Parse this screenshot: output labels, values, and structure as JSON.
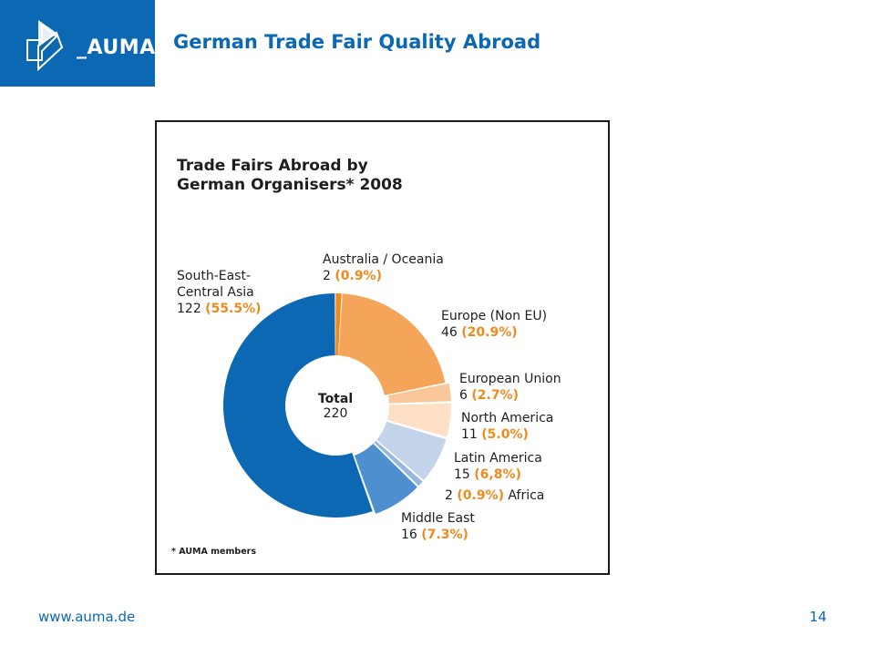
{
  "header": {
    "logo_text": "_AUMA",
    "title": "German Trade Fair Quality Abroad"
  },
  "footer": {
    "url": "www.auma.de",
    "page_number": "14"
  },
  "chart_data": {
    "type": "pie",
    "title": "Trade Fairs Abroad by\nGerman Organisers* 2008",
    "footnote": "* AUMA members",
    "total_label": "Total",
    "total_value": "220",
    "slices": [
      {
        "name": "Australia / Oceania",
        "value": 2,
        "percent": "(0.9%)",
        "color": "#f08a1e"
      },
      {
        "name": "Europe (Non EU)",
        "value": 46,
        "percent": "(20.9%)",
        "color": "#f5a55a"
      },
      {
        "name": "European Union",
        "value": 6,
        "percent": "(2.7%)",
        "color": "#f9c79a"
      },
      {
        "name": "North America",
        "value": 11,
        "percent": "(5.0%)",
        "color": "#fde0c6"
      },
      {
        "name": "Latin America",
        "value": 15,
        "percent": "(6,8%)",
        "color": "#c3d3ea"
      },
      {
        "name": "Africa",
        "value": 2,
        "percent": "(0.9%)",
        "color": "#94b8de"
      },
      {
        "name": "Middle East",
        "value": 16,
        "percent": "(7.3%)",
        "color": "#4d8fcf"
      },
      {
        "name": "South-East-\nCentral Asia",
        "value": 122,
        "percent": "(55.5%)",
        "color": "#0c68b2"
      }
    ]
  }
}
